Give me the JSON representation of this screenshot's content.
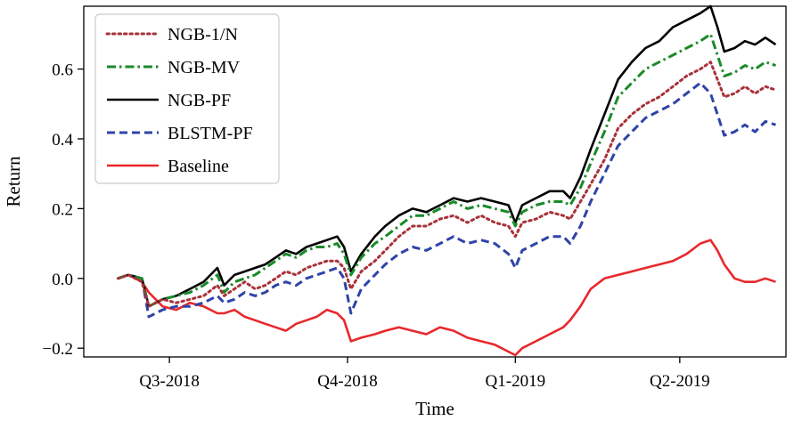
{
  "chart_data": {
    "type": "line",
    "xlabel": "Time",
    "ylabel": "Return",
    "xlim": [
      0,
      205
    ],
    "ylim": [
      -0.225,
      0.78
    ],
    "x_ticks": [
      {
        "pos": 25,
        "label": "Q3-2018"
      },
      {
        "pos": 77,
        "label": "Q4-2018"
      },
      {
        "pos": 126,
        "label": "Q1-2019"
      },
      {
        "pos": 174,
        "label": "Q2-2019"
      }
    ],
    "y_ticks": [
      {
        "value": -0.2,
        "label": "−0.2"
      },
      {
        "value": 0.0,
        "label": "0.0"
      },
      {
        "value": 0.2,
        "label": "0.2"
      },
      {
        "value": 0.4,
        "label": "0.4"
      },
      {
        "value": 0.6,
        "label": "0.6"
      }
    ],
    "legend_position": "upper-left",
    "series": [
      {
        "name": "NGB-1/N",
        "color": "#a8323a",
        "style": "dotted",
        "points": [
          [
            10,
            0.0
          ],
          [
            13,
            0.01
          ],
          [
            17,
            -0.01
          ],
          [
            19,
            -0.08
          ],
          [
            23,
            -0.06
          ],
          [
            27,
            -0.07
          ],
          [
            31,
            -0.06
          ],
          [
            35,
            -0.05
          ],
          [
            39,
            -0.02
          ],
          [
            41,
            -0.05
          ],
          [
            44,
            -0.03
          ],
          [
            47,
            -0.01
          ],
          [
            50,
            -0.03
          ],
          [
            53,
            -0.02
          ],
          [
            56,
            0.0
          ],
          [
            59,
            0.02
          ],
          [
            62,
            0.01
          ],
          [
            65,
            0.03
          ],
          [
            68,
            0.04
          ],
          [
            71,
            0.05
          ],
          [
            74,
            0.05
          ],
          [
            76,
            0.03
          ],
          [
            78,
            -0.03
          ],
          [
            81,
            0.02
          ],
          [
            85,
            0.05
          ],
          [
            88,
            0.08
          ],
          [
            92,
            0.12
          ],
          [
            96,
            0.15
          ],
          [
            100,
            0.15
          ],
          [
            104,
            0.17
          ],
          [
            108,
            0.18
          ],
          [
            112,
            0.16
          ],
          [
            116,
            0.18
          ],
          [
            120,
            0.16
          ],
          [
            124,
            0.15
          ],
          [
            126,
            0.12
          ],
          [
            128,
            0.16
          ],
          [
            132,
            0.17
          ],
          [
            136,
            0.19
          ],
          [
            140,
            0.18
          ],
          [
            142,
            0.17
          ],
          [
            145,
            0.22
          ],
          [
            148,
            0.27
          ],
          [
            152,
            0.34
          ],
          [
            156,
            0.43
          ],
          [
            160,
            0.47
          ],
          [
            164,
            0.5
          ],
          [
            168,
            0.52
          ],
          [
            172,
            0.55
          ],
          [
            176,
            0.58
          ],
          [
            180,
            0.6
          ],
          [
            183,
            0.62
          ],
          [
            185,
            0.57
          ],
          [
            187,
            0.52
          ],
          [
            190,
            0.53
          ],
          [
            193,
            0.55
          ],
          [
            196,
            0.53
          ],
          [
            199,
            0.55
          ],
          [
            202,
            0.54
          ]
        ]
      },
      {
        "name": "NGB-MV",
        "color": "#1a8a2a",
        "style": "dashdot",
        "points": [
          [
            10,
            0.0
          ],
          [
            13,
            0.01
          ],
          [
            17,
            0.0
          ],
          [
            19,
            -0.08
          ],
          [
            23,
            -0.06
          ],
          [
            27,
            -0.05
          ],
          [
            31,
            -0.04
          ],
          [
            35,
            -0.02
          ],
          [
            39,
            0.01
          ],
          [
            41,
            -0.04
          ],
          [
            44,
            -0.01
          ],
          [
            47,
            0.0
          ],
          [
            50,
            0.01
          ],
          [
            53,
            0.03
          ],
          [
            56,
            0.05
          ],
          [
            59,
            0.07
          ],
          [
            62,
            0.06
          ],
          [
            65,
            0.08
          ],
          [
            68,
            0.09
          ],
          [
            71,
            0.09
          ],
          [
            74,
            0.1
          ],
          [
            76,
            0.07
          ],
          [
            78,
            0.01
          ],
          [
            81,
            0.06
          ],
          [
            85,
            0.1
          ],
          [
            88,
            0.12
          ],
          [
            92,
            0.15
          ],
          [
            96,
            0.18
          ],
          [
            100,
            0.18
          ],
          [
            104,
            0.2
          ],
          [
            108,
            0.22
          ],
          [
            112,
            0.2
          ],
          [
            116,
            0.21
          ],
          [
            120,
            0.2
          ],
          [
            124,
            0.19
          ],
          [
            126,
            0.15
          ],
          [
            128,
            0.19
          ],
          [
            132,
            0.21
          ],
          [
            136,
            0.22
          ],
          [
            140,
            0.22
          ],
          [
            142,
            0.21
          ],
          [
            145,
            0.26
          ],
          [
            148,
            0.33
          ],
          [
            152,
            0.42
          ],
          [
            156,
            0.52
          ],
          [
            160,
            0.56
          ],
          [
            164,
            0.6
          ],
          [
            168,
            0.62
          ],
          [
            172,
            0.64
          ],
          [
            176,
            0.66
          ],
          [
            180,
            0.68
          ],
          [
            183,
            0.7
          ],
          [
            185,
            0.64
          ],
          [
            187,
            0.58
          ],
          [
            190,
            0.59
          ],
          [
            193,
            0.61
          ],
          [
            196,
            0.6
          ],
          [
            199,
            0.62
          ],
          [
            202,
            0.61
          ]
        ]
      },
      {
        "name": "NGB-PF",
        "color": "#000000",
        "style": "solid",
        "points": [
          [
            10,
            0.0
          ],
          [
            13,
            0.01
          ],
          [
            17,
            0.0
          ],
          [
            19,
            -0.08
          ],
          [
            23,
            -0.06
          ],
          [
            27,
            -0.05
          ],
          [
            31,
            -0.03
          ],
          [
            35,
            -0.01
          ],
          [
            39,
            0.03
          ],
          [
            41,
            -0.02
          ],
          [
            44,
            0.01
          ],
          [
            47,
            0.02
          ],
          [
            50,
            0.03
          ],
          [
            53,
            0.04
          ],
          [
            56,
            0.06
          ],
          [
            59,
            0.08
          ],
          [
            62,
            0.07
          ],
          [
            65,
            0.09
          ],
          [
            68,
            0.1
          ],
          [
            71,
            0.11
          ],
          [
            74,
            0.12
          ],
          [
            76,
            0.09
          ],
          [
            78,
            0.02
          ],
          [
            81,
            0.07
          ],
          [
            85,
            0.12
          ],
          [
            88,
            0.15
          ],
          [
            92,
            0.18
          ],
          [
            96,
            0.2
          ],
          [
            100,
            0.19
          ],
          [
            104,
            0.21
          ],
          [
            108,
            0.23
          ],
          [
            112,
            0.22
          ],
          [
            116,
            0.23
          ],
          [
            120,
            0.22
          ],
          [
            124,
            0.21
          ],
          [
            126,
            0.16
          ],
          [
            128,
            0.21
          ],
          [
            132,
            0.23
          ],
          [
            136,
            0.25
          ],
          [
            140,
            0.25
          ],
          [
            142,
            0.23
          ],
          [
            145,
            0.29
          ],
          [
            148,
            0.37
          ],
          [
            152,
            0.47
          ],
          [
            156,
            0.57
          ],
          [
            160,
            0.62
          ],
          [
            164,
            0.66
          ],
          [
            168,
            0.68
          ],
          [
            172,
            0.72
          ],
          [
            176,
            0.74
          ],
          [
            180,
            0.76
          ],
          [
            183,
            0.78
          ],
          [
            185,
            0.72
          ],
          [
            187,
            0.65
          ],
          [
            190,
            0.66
          ],
          [
            193,
            0.68
          ],
          [
            196,
            0.67
          ],
          [
            199,
            0.69
          ],
          [
            202,
            0.67
          ]
        ]
      },
      {
        "name": "BLSTM-PF",
        "color": "#2f44a8",
        "style": "dashed",
        "points": [
          [
            10,
            0.0
          ],
          [
            13,
            0.01
          ],
          [
            17,
            0.0
          ],
          [
            19,
            -0.11
          ],
          [
            23,
            -0.09
          ],
          [
            27,
            -0.08
          ],
          [
            31,
            -0.08
          ],
          [
            35,
            -0.07
          ],
          [
            39,
            -0.05
          ],
          [
            41,
            -0.07
          ],
          [
            44,
            -0.06
          ],
          [
            47,
            -0.04
          ],
          [
            50,
            -0.05
          ],
          [
            53,
            -0.04
          ],
          [
            56,
            -0.02
          ],
          [
            59,
            -0.01
          ],
          [
            62,
            -0.02
          ],
          [
            65,
            0.0
          ],
          [
            68,
            0.01
          ],
          [
            71,
            0.02
          ],
          [
            74,
            0.03
          ],
          [
            76,
            0.0
          ],
          [
            78,
            -0.1
          ],
          [
            81,
            -0.03
          ],
          [
            85,
            0.01
          ],
          [
            88,
            0.04
          ],
          [
            92,
            0.07
          ],
          [
            96,
            0.09
          ],
          [
            100,
            0.08
          ],
          [
            104,
            0.1
          ],
          [
            108,
            0.12
          ],
          [
            112,
            0.1
          ],
          [
            116,
            0.11
          ],
          [
            120,
            0.1
          ],
          [
            124,
            0.07
          ],
          [
            126,
            0.03
          ],
          [
            128,
            0.08
          ],
          [
            132,
            0.1
          ],
          [
            136,
            0.12
          ],
          [
            140,
            0.12
          ],
          [
            142,
            0.1
          ],
          [
            145,
            0.15
          ],
          [
            148,
            0.22
          ],
          [
            152,
            0.3
          ],
          [
            156,
            0.38
          ],
          [
            160,
            0.42
          ],
          [
            164,
            0.46
          ],
          [
            168,
            0.48
          ],
          [
            172,
            0.5
          ],
          [
            176,
            0.53
          ],
          [
            180,
            0.56
          ],
          [
            183,
            0.53
          ],
          [
            185,
            0.47
          ],
          [
            187,
            0.41
          ],
          [
            190,
            0.42
          ],
          [
            193,
            0.44
          ],
          [
            196,
            0.42
          ],
          [
            199,
            0.45
          ],
          [
            202,
            0.44
          ]
        ]
      },
      {
        "name": "Baseline",
        "color": "#e8282c",
        "style": "solid",
        "points": [
          [
            10,
            0.0
          ],
          [
            13,
            0.01
          ],
          [
            17,
            -0.01
          ],
          [
            19,
            -0.04
          ],
          [
            23,
            -0.08
          ],
          [
            27,
            -0.09
          ],
          [
            31,
            -0.07
          ],
          [
            35,
            -0.08
          ],
          [
            39,
            -0.1
          ],
          [
            41,
            -0.1
          ],
          [
            44,
            -0.09
          ],
          [
            47,
            -0.11
          ],
          [
            50,
            -0.12
          ],
          [
            53,
            -0.13
          ],
          [
            56,
            -0.14
          ],
          [
            59,
            -0.15
          ],
          [
            62,
            -0.13
          ],
          [
            65,
            -0.12
          ],
          [
            68,
            -0.11
          ],
          [
            71,
            -0.09
          ],
          [
            74,
            -0.1
          ],
          [
            76,
            -0.12
          ],
          [
            78,
            -0.18
          ],
          [
            81,
            -0.17
          ],
          [
            85,
            -0.16
          ],
          [
            88,
            -0.15
          ],
          [
            92,
            -0.14
          ],
          [
            96,
            -0.15
          ],
          [
            100,
            -0.16
          ],
          [
            104,
            -0.14
          ],
          [
            108,
            -0.15
          ],
          [
            112,
            -0.17
          ],
          [
            116,
            -0.18
          ],
          [
            120,
            -0.19
          ],
          [
            124,
            -0.21
          ],
          [
            126,
            -0.22
          ],
          [
            128,
            -0.2
          ],
          [
            132,
            -0.18
          ],
          [
            136,
            -0.16
          ],
          [
            140,
            -0.14
          ],
          [
            142,
            -0.12
          ],
          [
            145,
            -0.08
          ],
          [
            148,
            -0.03
          ],
          [
            152,
            0.0
          ],
          [
            156,
            0.01
          ],
          [
            160,
            0.02
          ],
          [
            164,
            0.03
          ],
          [
            168,
            0.04
          ],
          [
            172,
            0.05
          ],
          [
            176,
            0.07
          ],
          [
            180,
            0.1
          ],
          [
            183,
            0.11
          ],
          [
            185,
            0.08
          ],
          [
            187,
            0.04
          ],
          [
            190,
            0.0
          ],
          [
            193,
            -0.01
          ],
          [
            196,
            -0.01
          ],
          [
            199,
            0.0
          ],
          [
            202,
            -0.01
          ]
        ]
      }
    ]
  }
}
